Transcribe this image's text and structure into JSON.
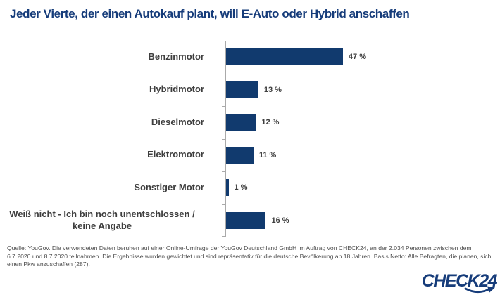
{
  "colors": {
    "brand_blue": "#163C7A",
    "bar_blue": "#113A6E",
    "label_gray": "#3E3E3E",
    "axis_gray": "#AAAAAA",
    "source_gray": "#4D4D4D"
  },
  "header": {
    "title": "Jeder Vierte, der einen Autokauf plant, will E-Auto oder Hybrid anschaffen"
  },
  "chart_data": {
    "type": "bar",
    "orientation": "horizontal",
    "title": "Jeder Vierte, der einen Autokauf plant, will E-Auto oder Hybrid anschaffen",
    "categories": [
      "Benzinmotor",
      "Hybridmotor",
      "Dieselmotor",
      "Elektromotor",
      "Sonstiger Motor",
      "Weiß nicht - Ich bin noch unentschlossen /\nkeine Angabe"
    ],
    "values": [
      47,
      13,
      12,
      11,
      1,
      16
    ],
    "value_labels": [
      "47 %",
      "13 %",
      "12 %",
      "11 %",
      "1 %",
      "16 %"
    ],
    "unit": "%",
    "xlim": [
      0,
      50
    ],
    "grid": false,
    "legend": false,
    "bar_color": "#113A6E"
  },
  "footer": {
    "source_text": "Quelle: YouGov. Die verwendeten Daten beruhen auf einer Online-Umfrage der YouGov Deutschland GmbH im Auftrag von CHECK24, an der 2.034 Personen zwischen dem 6.7.2020 und 8.7.2020 teilnahmen. Die Ergebnisse wurden gewichtet und sind repräsentativ für die deutsche Bevölkerung ab 18 Jahren. Basis Netto: Alle Befragten, die planen, sich einen Pkw anzuschaffen (287).",
    "logo_text": "CHECK24"
  }
}
